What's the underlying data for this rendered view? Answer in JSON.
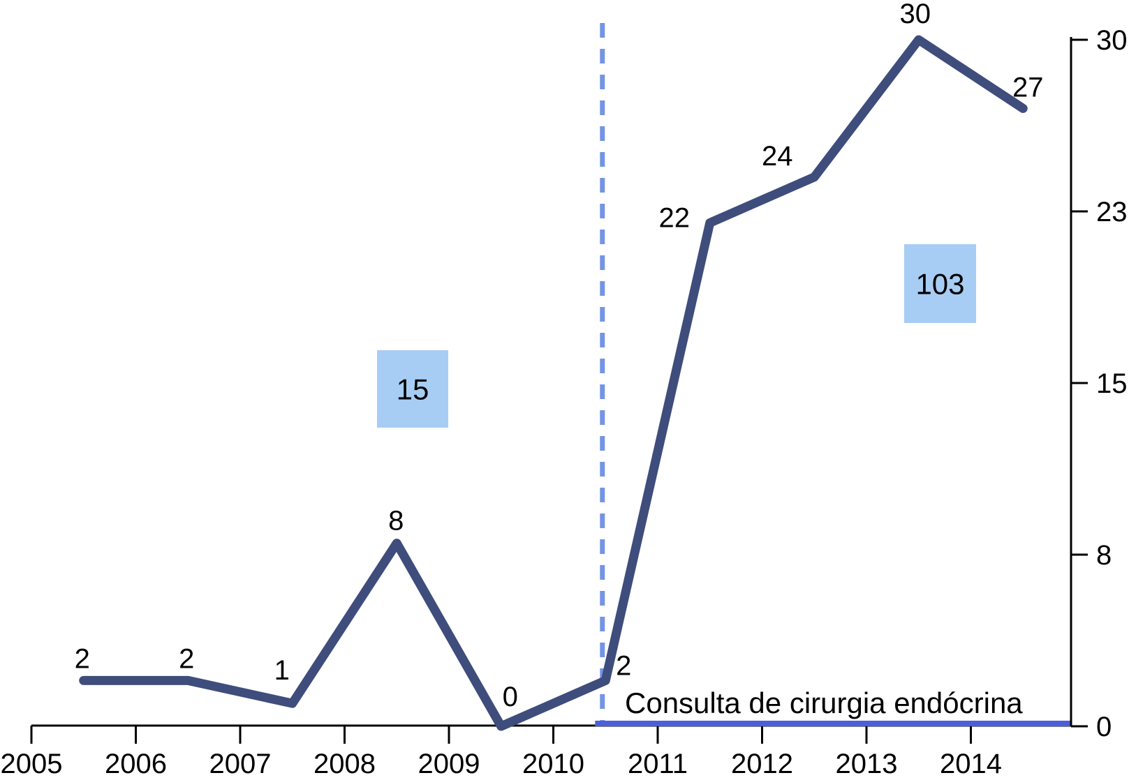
{
  "chart_data": {
    "type": "line",
    "title": "",
    "xlabel": "",
    "ylabel": "",
    "grid": false,
    "legend_position": "none",
    "xlim": [
      2005,
      2014.95
    ],
    "ylim": [
      0,
      30
    ],
    "x_tick_labels": [
      "2005",
      "2006",
      "2007",
      "2008",
      "2009",
      "2010",
      "2011",
      "2012",
      "2013",
      "2014"
    ],
    "x_tick_years": [
      2005,
      2006,
      2007,
      2008,
      2009,
      2010,
      2011,
      2012,
      2013,
      2014
    ],
    "y_tick_labels": [
      "0",
      "8",
      "15",
      "23",
      "30"
    ],
    "y_tick_values": [
      0,
      7.5,
      15,
      22.5,
      30
    ],
    "series": [
      {
        "name": "cirurgias",
        "color": "#3e4d7c",
        "x": [
          2005.5,
          2006.5,
          2007.5,
          2008.5,
          2009.5,
          2010.5,
          2011.5,
          2012.5,
          2013.5,
          2014.5
        ],
        "values": [
          2,
          2,
          1,
          8,
          0,
          2,
          22,
          24,
          30,
          27
        ],
        "data_labels": [
          "2",
          "2",
          "1",
          "8",
          "0",
          "2",
          "22",
          "24",
          "30",
          "27"
        ]
      },
      {
        "name": "consulta-baseline",
        "label": "Consulta de cirurgia endócrina",
        "color": "#4a5fd9",
        "x": [
          2010.4,
          2014.95
        ],
        "values": [
          0,
          0
        ]
      }
    ],
    "annotations": {
      "divider": {
        "x": 2010.47,
        "style": "dashed",
        "color": "#7494e4"
      },
      "boxes": [
        {
          "label": "15",
          "fill": "#a8cdf4",
          "text_color": "#1c2233"
        },
        {
          "label": "103",
          "fill": "#a8cdf4",
          "text_color": "#1c2233"
        }
      ],
      "series_label": "Consulta de cirurgia endócrina"
    },
    "axis_color": "#000000",
    "label_color": "#000000"
  }
}
